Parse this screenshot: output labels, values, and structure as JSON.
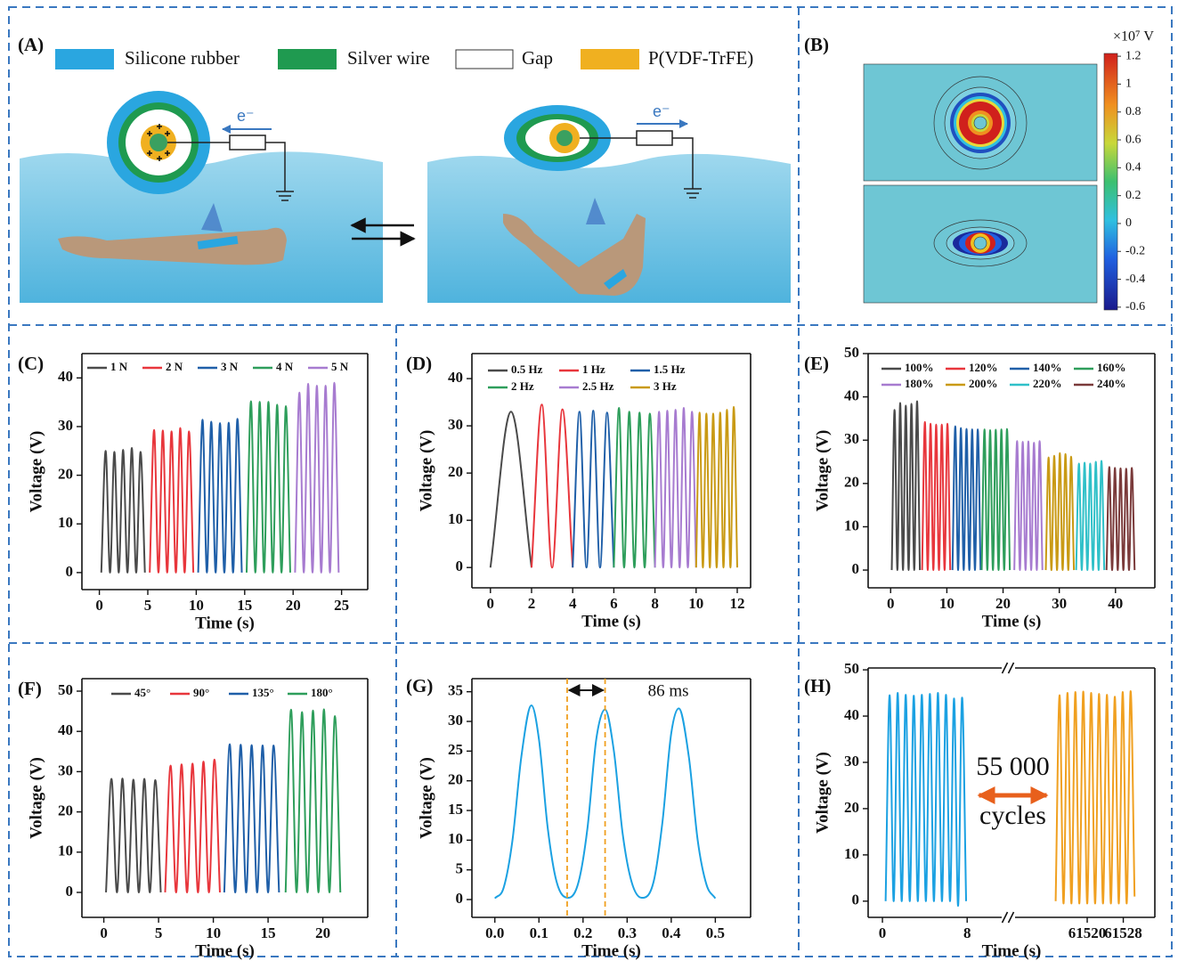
{
  "panel_a": {
    "label": "(A)",
    "legend": [
      "Silicone rubber",
      "Silver wire",
      "Gap",
      "P(VDF-TrFE)"
    ],
    "electron_labels": [
      "e⁻",
      "e⁻"
    ]
  },
  "panel_b": {
    "label": "(B)",
    "colorbar_unit": "×10⁷ V",
    "colorbar_lim": [
      -0.62,
      1.22
    ],
    "colorbar_ticks": [
      1.2,
      1,
      0.8,
      0.6,
      0.4,
      0.2,
      0,
      -0.2,
      -0.4,
      -0.6
    ]
  },
  "chart_data": [
    {
      "type": "line",
      "label": "(C)",
      "xlabel": "Time (s)",
      "ylabel": "Voltage (V)",
      "xlim": [
        -1.8,
        27.7
      ],
      "ylim": [
        -3.5,
        45
      ],
      "xticks": [
        0,
        5,
        10,
        15,
        20,
        25
      ],
      "yticks": [
        0,
        10,
        20,
        30,
        40
      ],
      "series": [
        {
          "name": "1 N",
          "color": "#4a4a4a",
          "x": [
            0.2,
            0.65,
            1.1,
            1.55,
            2.0,
            2.45,
            2.9,
            3.35,
            3.8,
            4.25,
            4.7
          ],
          "values": [
            0,
            25,
            0,
            24.8,
            0,
            25.2,
            0,
            25.6,
            0,
            24.8,
            0
          ]
        },
        {
          "name": "2 N",
          "color": "#e8363c",
          "x": [
            5.2,
            5.65,
            6.1,
            6.55,
            7.0,
            7.45,
            7.9,
            8.35,
            8.8,
            9.25,
            9.7
          ],
          "values": [
            0,
            29.3,
            0,
            29.2,
            0,
            29,
            0,
            29.7,
            0,
            29,
            0
          ]
        },
        {
          "name": "3 N",
          "color": "#1f5fa8",
          "x": [
            10.2,
            10.65,
            11.1,
            11.55,
            12.0,
            12.45,
            12.9,
            13.35,
            13.8,
            14.25,
            14.7
          ],
          "values": [
            0,
            31.4,
            0,
            31,
            0,
            30.7,
            0,
            30.8,
            0,
            31.6,
            0
          ]
        },
        {
          "name": "4 N",
          "color": "#2e9e5b",
          "x": [
            15.2,
            15.65,
            16.1,
            16.55,
            17.0,
            17.45,
            17.9,
            18.35,
            18.8,
            19.25,
            19.7
          ],
          "values": [
            0,
            35.2,
            0,
            35.1,
            0,
            35.1,
            0,
            34.5,
            0,
            34.2,
            0
          ]
        },
        {
          "name": "5 N",
          "color": "#a77bd0",
          "x": [
            20.2,
            20.65,
            21.1,
            21.55,
            22.0,
            22.45,
            22.9,
            23.35,
            23.8,
            24.25,
            24.7
          ],
          "values": [
            0,
            37,
            0,
            38.8,
            0,
            38.4,
            0,
            38.4,
            0,
            39,
            0
          ]
        }
      ]
    },
    {
      "type": "line",
      "label": "(D)",
      "xlabel": "Time (s)",
      "ylabel": "Voltage (V)",
      "xlim": [
        -0.9,
        12.65
      ],
      "ylim": [
        -4.3,
        45.3
      ],
      "xticks": [
        0,
        2,
        4,
        6,
        8,
        10,
        12
      ],
      "yticks": [
        0,
        10,
        20,
        30,
        40
      ],
      "series": [
        {
          "name": "0.5 Hz",
          "color": "#4a4a4a",
          "x": [
            0,
            1,
            2
          ],
          "values": [
            0,
            33,
            0
          ]
        },
        {
          "name": "1 Hz",
          "color": "#e8363c",
          "x": [
            2,
            2.5,
            3,
            3.5,
            4
          ],
          "values": [
            0,
            34.5,
            0,
            33.5,
            0
          ]
        },
        {
          "name": "1.5 Hz",
          "color": "#1f5fa8",
          "x": [
            4,
            4.33,
            4.67,
            5,
            5.33,
            5.67,
            6
          ],
          "values": [
            0,
            33,
            0,
            33.2,
            0,
            32.8,
            0
          ]
        },
        {
          "name": "2 Hz",
          "color": "#2e9e5b",
          "x": [
            6,
            6.25,
            6.5,
            6.75,
            7,
            7.25,
            7.5,
            7.75,
            8
          ],
          "values": [
            0,
            33.8,
            0,
            33,
            0,
            32.8,
            0,
            32.6,
            0
          ]
        },
        {
          "name": "2.5 Hz",
          "color": "#a77bd0",
          "x": [
            8,
            8.2,
            8.4,
            8.6,
            8.8,
            9,
            9.2,
            9.4,
            9.6,
            9.8,
            10
          ],
          "values": [
            0,
            33,
            0,
            33.2,
            0,
            33.4,
            0,
            33.8,
            0,
            33,
            0
          ]
        },
        {
          "name": "3 Hz",
          "color": "#c99a14",
          "x": [
            10,
            10.17,
            10.33,
            10.5,
            10.67,
            10.83,
            11,
            11.17,
            11.33,
            11.5,
            11.67,
            11.83,
            12
          ],
          "values": [
            0,
            32.8,
            0,
            32.6,
            0,
            32.6,
            0,
            32.8,
            0,
            33.4,
            0,
            34,
            0
          ]
        }
      ]
    },
    {
      "type": "line",
      "label": "(E)",
      "xlabel": "Time (s)",
      "ylabel": "Voltage (V)",
      "xlim": [
        -4,
        47
      ],
      "ylim": [
        -4.1,
        50
      ],
      "xticks": [
        0,
        10,
        20,
        30,
        40
      ],
      "yticks": [
        0,
        10,
        20,
        30,
        40,
        50
      ],
      "series": [
        {
          "name": "100%",
          "color": "#4a4a4a",
          "x": [
            0.2,
            0.7,
            1.2,
            1.7,
            2.2,
            2.7,
            3.2,
            3.7,
            4.2,
            4.7,
            5.2
          ],
          "values": [
            0,
            37,
            0,
            38.6,
            0,
            38,
            0,
            38.4,
            0,
            39,
            0
          ]
        },
        {
          "name": "120%",
          "color": "#e8363c",
          "x": [
            5.6,
            6.1,
            6.6,
            7.1,
            7.6,
            8.1,
            8.6,
            9.1,
            9.6,
            10.1,
            10.6
          ],
          "values": [
            0,
            34.2,
            0,
            33.8,
            0,
            33.6,
            0,
            33.6,
            0,
            33.8,
            0
          ]
        },
        {
          "name": "140%",
          "color": "#1f5fa8",
          "x": [
            11,
            11.5,
            12,
            12.5,
            13,
            13.5,
            14,
            14.5,
            15,
            15.5,
            16
          ],
          "values": [
            0,
            33.2,
            0,
            32.8,
            0,
            32.6,
            0,
            32.5,
            0,
            32.5,
            0
          ]
        },
        {
          "name": "160%",
          "color": "#2e9e5b",
          "x": [
            16.2,
            16.7,
            17.2,
            17.7,
            18.2,
            18.7,
            19.2,
            19.7,
            20.2,
            20.7,
            21.2
          ],
          "values": [
            0,
            32.5,
            0,
            32.3,
            0,
            32.4,
            0,
            32.5,
            0,
            32.6,
            0
          ]
        },
        {
          "name": "180%",
          "color": "#a77bd0",
          "x": [
            22,
            22.5,
            23,
            23.5,
            24,
            24.5,
            25,
            25.5,
            26,
            26.5,
            27
          ],
          "values": [
            0,
            29.8,
            0,
            29.6,
            0,
            29.7,
            0,
            29.4,
            0,
            29.8,
            0
          ]
        },
        {
          "name": "200%",
          "color": "#c99a14",
          "x": [
            27.6,
            28.1,
            28.6,
            29.1,
            29.6,
            30.1,
            30.6,
            31.1,
            31.6,
            32.1,
            32.6
          ],
          "values": [
            0,
            26,
            0,
            26.4,
            0,
            27,
            0,
            26.8,
            0,
            26.2,
            0
          ]
        },
        {
          "name": "220%",
          "color": "#2fc0c8",
          "x": [
            33,
            33.5,
            34,
            34.5,
            35,
            35.5,
            36,
            36.5,
            37,
            37.5,
            38
          ],
          "values": [
            0,
            24.6,
            0,
            24.8,
            0,
            24.6,
            0,
            25,
            0,
            25.2,
            0
          ]
        },
        {
          "name": "240%",
          "color": "#7a3a3a",
          "x": [
            38.4,
            38.9,
            39.4,
            39.9,
            40.4,
            40.9,
            41.4,
            41.9,
            42.4,
            42.9,
            43.4
          ],
          "values": [
            0,
            23.8,
            0,
            23.6,
            0,
            23.5,
            0,
            23.4,
            0,
            23.6,
            0
          ]
        }
      ]
    },
    {
      "type": "line",
      "label": "(F)",
      "xlabel": "Time (s)",
      "ylabel": "Voltage (V)",
      "xlim": [
        -2,
        24.1
      ],
      "ylim": [
        -6.2,
        53.1
      ],
      "xticks": [
        0,
        5,
        10,
        15,
        20
      ],
      "yticks": [
        0,
        10,
        20,
        30,
        40,
        50
      ],
      "series": [
        {
          "name": "45°",
          "color": "#4a4a4a",
          "x": [
            0.2,
            0.7,
            1.2,
            1.7,
            2.2,
            2.7,
            3.2,
            3.7,
            4.2,
            4.7,
            5.2
          ],
          "values": [
            0,
            28.2,
            0,
            28.3,
            0,
            28,
            0,
            28.2,
            0,
            27.9,
            0
          ]
        },
        {
          "name": "90°",
          "color": "#e8363c",
          "x": [
            5.6,
            6.1,
            6.6,
            7.1,
            7.6,
            8.1,
            8.6,
            9.1,
            9.6,
            10.1,
            10.6
          ],
          "values": [
            0,
            31.5,
            0,
            31.8,
            0,
            32,
            0,
            32.5,
            0,
            33,
            0
          ]
        },
        {
          "name": "135°",
          "color": "#1f5fa8",
          "x": [
            11,
            11.5,
            12,
            12.5,
            13,
            13.5,
            14,
            14.5,
            15,
            15.5,
            16
          ],
          "values": [
            0,
            36.8,
            0,
            36.7,
            0,
            36.6,
            0,
            36.5,
            0,
            36.5,
            0
          ]
        },
        {
          "name": "180°",
          "color": "#2e9e5b",
          "x": [
            16.6,
            17.1,
            17.6,
            18.1,
            18.6,
            19.1,
            19.6,
            20.1,
            20.6,
            21.1,
            21.6
          ],
          "values": [
            0,
            45.4,
            0,
            44.8,
            0,
            45.2,
            0,
            45.5,
            0,
            43.8,
            0
          ]
        }
      ]
    },
    {
      "type": "line",
      "label": "(G)",
      "xlabel": "Time (s)",
      "ylabel": "Voltage (V)",
      "xlim": [
        -0.052,
        0.58
      ],
      "ylim": [
        -3,
        37.2
      ],
      "xticks": [
        {
          "value": 0,
          "label": "0.0"
        },
        0.1,
        0.2,
        0.3,
        0.4,
        0.5
      ],
      "yticks": [
        0,
        5,
        10,
        15,
        20,
        25,
        30,
        35
      ],
      "markers": [
        0.164,
        0.25
      ],
      "annotation": "86 ms",
      "marker_color": "#f0a020",
      "series": [
        {
          "color": "#1ba1e2",
          "x": [
            0,
            0.02,
            0.04,
            0.06,
            0.083,
            0.1,
            0.12,
            0.14,
            0.167,
            0.19,
            0.21,
            0.23,
            0.25,
            0.27,
            0.29,
            0.31,
            0.333,
            0.36,
            0.38,
            0.4,
            0.417,
            0.44,
            0.46,
            0.48,
            0.5
          ],
          "values": [
            0.2,
            2,
            10,
            24,
            32.7,
            27,
            12,
            3,
            0.3,
            3,
            12,
            27,
            32,
            25,
            11,
            3,
            0.3,
            3,
            13,
            28,
            32.2,
            24,
            10,
            2.5,
            0.2
          ]
        }
      ]
    },
    {
      "type": "line",
      "label": "(H)",
      "xlabel": "Time (s)",
      "ylabel": "Voltage (V)",
      "ylim": [
        -3.5,
        50.4
      ],
      "yticks": [
        0,
        10,
        20,
        30,
        40,
        50
      ],
      "segments": [
        {
          "xlim": [
            -1.35,
            11.26
          ],
          "xticks": [
            0,
            8
          ]
        },
        {
          "xlim": [
            61504,
            61535
          ],
          "xticks": [
            61520,
            61528
          ]
        }
      ],
      "annotations": [
        "55 000",
        "cycles"
      ],
      "arrow_color": "#e8601c",
      "series": [
        {
          "color": "#1ba1e2",
          "segment": 0,
          "x": [
            0.3,
            0.68,
            1.06,
            1.44,
            1.82,
            2.2,
            2.58,
            2.96,
            3.34,
            3.72,
            4.1,
            4.48,
            4.86,
            5.24,
            5.62,
            6.0,
            6.38,
            6.76,
            7.14,
            7.52,
            7.9
          ],
          "values": [
            0,
            44.5,
            0,
            45,
            0,
            44.6,
            0,
            44.4,
            0,
            44.6,
            0,
            44.8,
            0,
            45,
            0,
            44.6,
            0,
            43.8,
            -1,
            44,
            0
          ]
        },
        {
          "color": "#f0a020",
          "segment": 1,
          "x": [
            61513,
            61513.875,
            61514.75,
            61515.625,
            61516.5,
            61517.375,
            61518.25,
            61519.125,
            61520,
            61520.875,
            61521.75,
            61522.625,
            61523.5,
            61524.375,
            61525.25,
            61526.125,
            61527,
            61527.875,
            61528.75,
            61529.625,
            61530.5
          ],
          "values": [
            0,
            44.5,
            -0.5,
            45,
            -0.5,
            45.2,
            -0.5,
            45.3,
            -0.5,
            45,
            -0.5,
            44.8,
            -0.5,
            44.6,
            -0.5,
            44.2,
            -0.5,
            45.2,
            -0.5,
            45.4,
            1
          ]
        }
      ]
    }
  ]
}
